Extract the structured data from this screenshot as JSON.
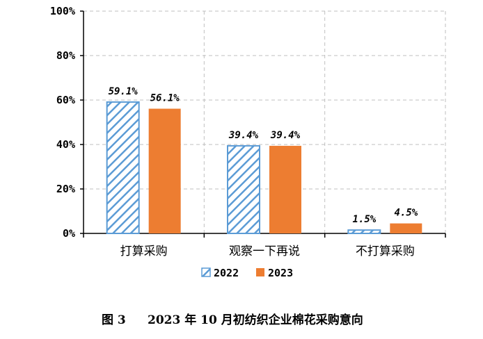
{
  "chart_data": {
    "type": "bar",
    "categories": [
      "打算采购",
      "观察一下再说",
      "不打算采购"
    ],
    "series": [
      {
        "name": "2022",
        "values": [
          59.1,
          39.4,
          1.5
        ],
        "labels": [
          "59.1%",
          "39.4%",
          "1.5%"
        ],
        "color": "#5B9BD5",
        "pattern": "diagonal-hatch"
      },
      {
        "name": "2023",
        "values": [
          56.1,
          39.4,
          4.5
        ],
        "labels": [
          "56.1%",
          "39.4%",
          "4.5%"
        ],
        "color": "#ED7D31",
        "pattern": "solid"
      }
    ],
    "yticks": [
      "0%",
      "20%",
      "40%",
      "60%",
      "80%",
      "100%"
    ],
    "ylim": [
      0,
      100
    ],
    "grid": true,
    "legend_position": "bottom"
  },
  "caption": {
    "figure_number": "图 3",
    "text": "2023 年 10 月初纺织企业棉花采购意向"
  },
  "colors": {
    "axis": "#000000",
    "grid": "#BFBFBF"
  }
}
